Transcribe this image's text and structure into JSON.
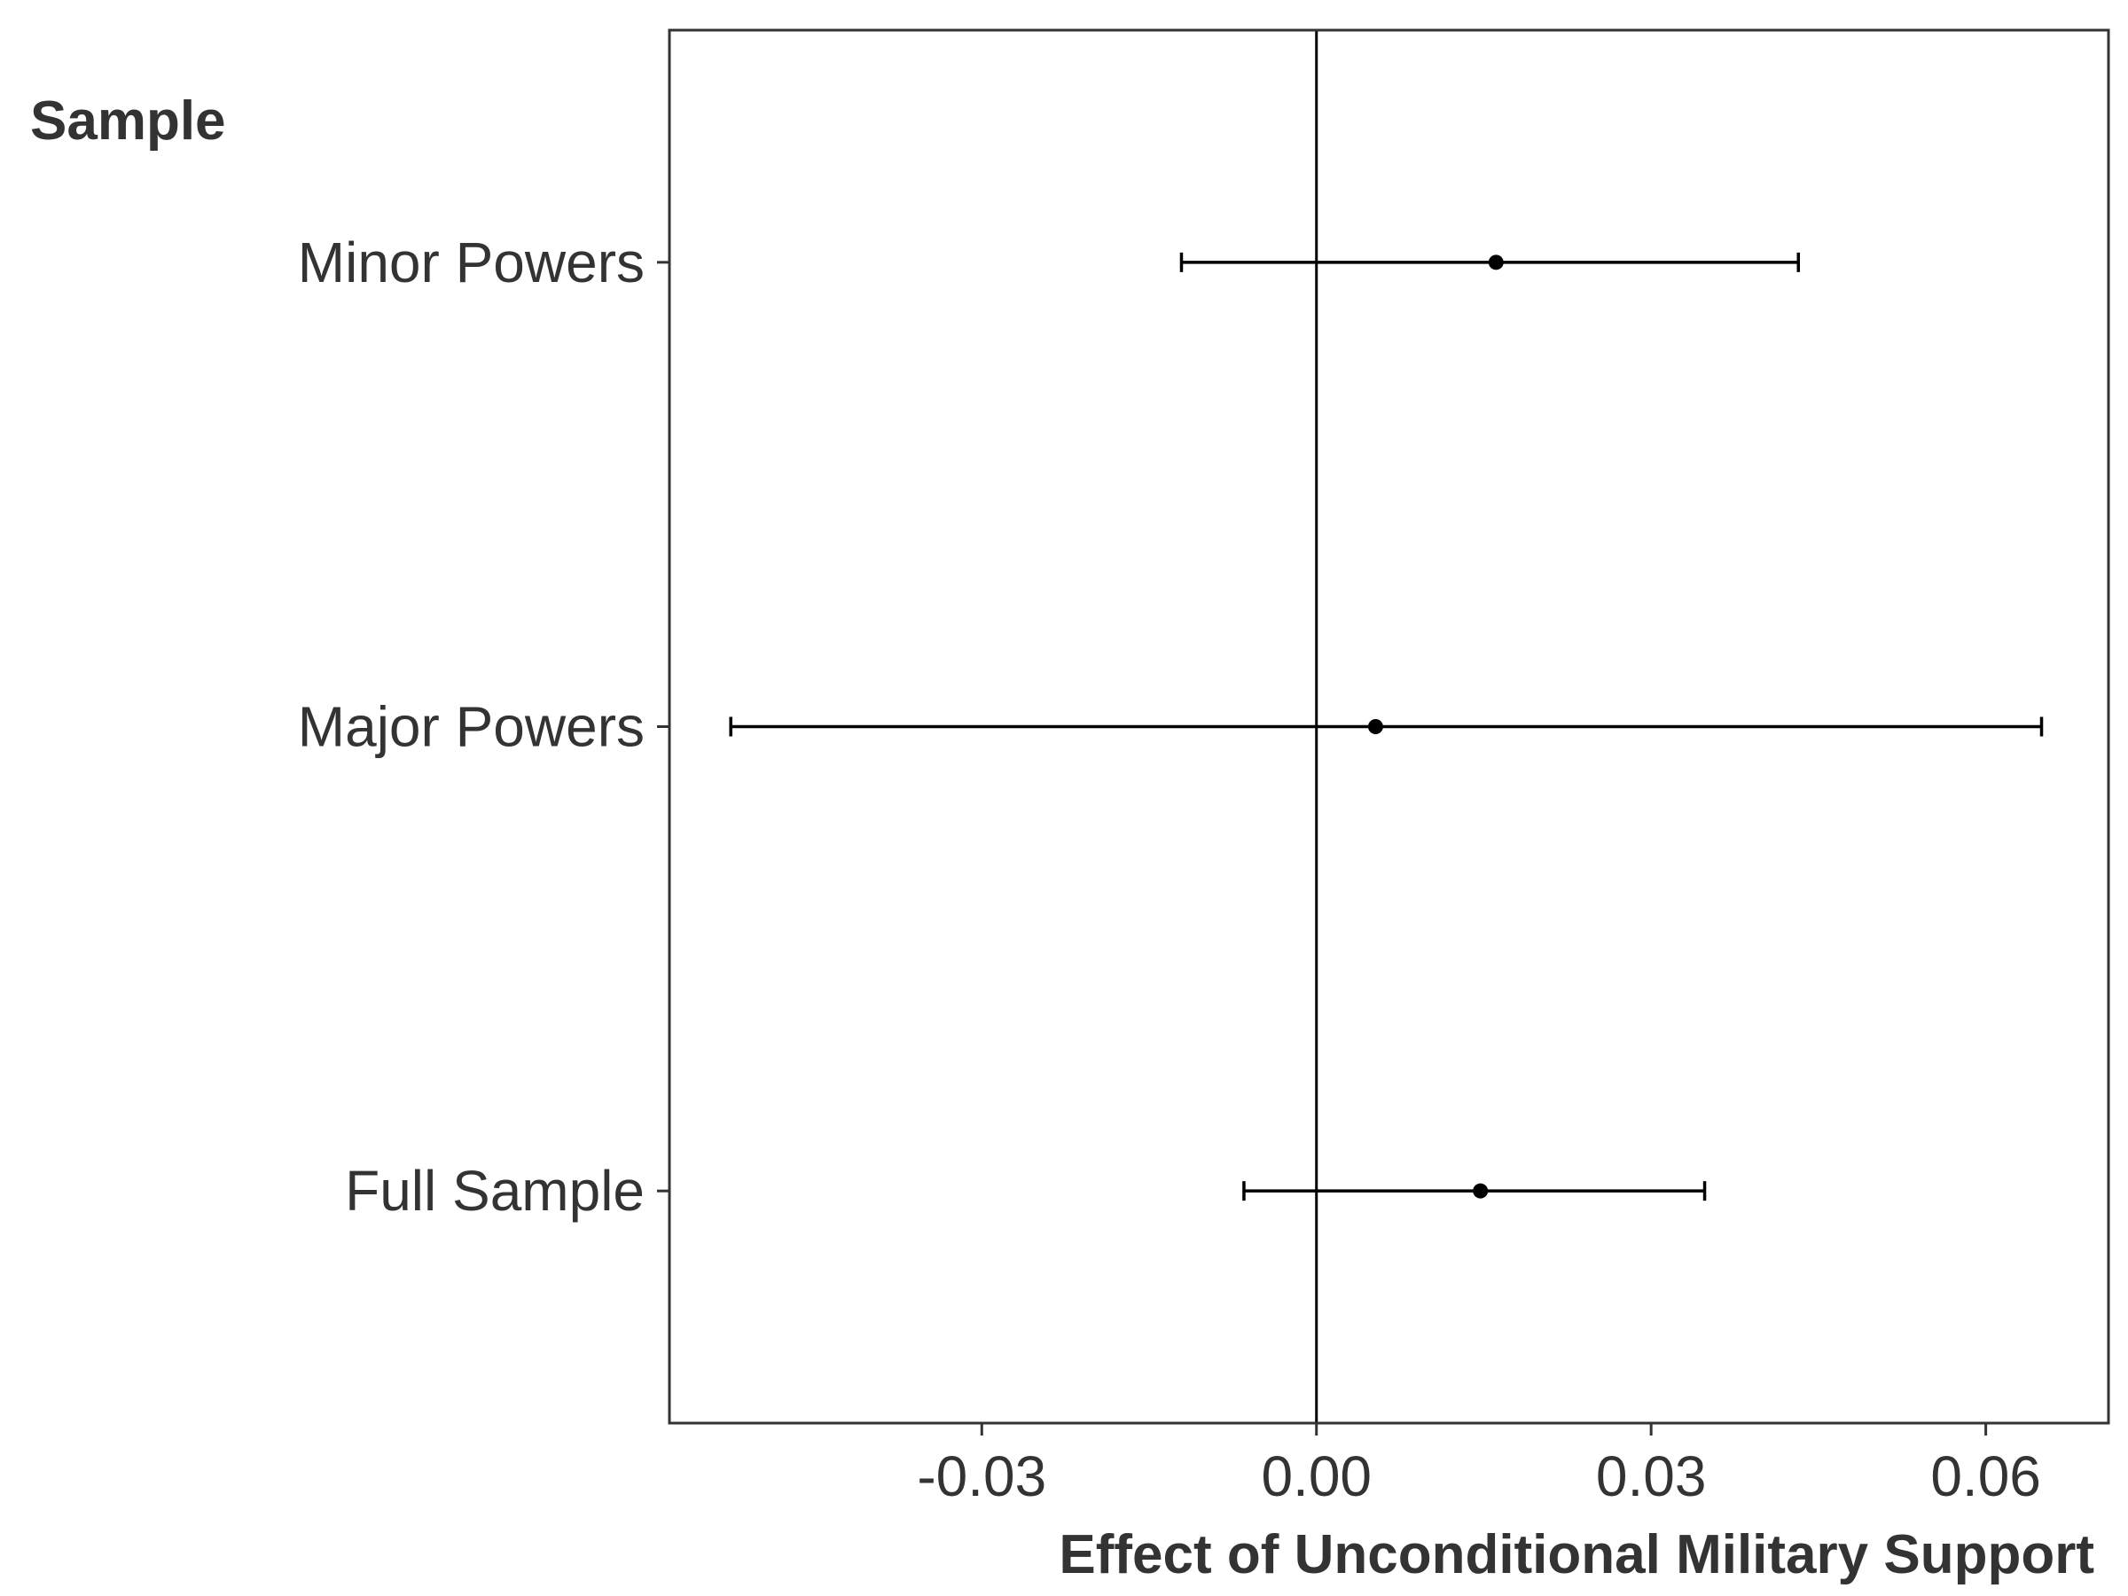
{
  "chart_data": {
    "type": "scatter",
    "subtype": "coefficient-plot-horizontal-errorbars",
    "title": "",
    "xlabel": "Effect of Unconditional Military Support",
    "ylabel": "Sample",
    "xlim": [
      -0.058,
      0.071
    ],
    "x_ticks": [
      -0.03,
      0.0,
      0.03,
      0.06
    ],
    "x_tick_labels": [
      "-0.03",
      "0.00",
      "0.03",
      "0.06"
    ],
    "reference_line_x": 0,
    "grid": false,
    "legend": "none",
    "categories": [
      "Full Sample",
      "Major Powers",
      "Minor Powers"
    ],
    "points": [
      {
        "category": "Full Sample",
        "estimate": 0.0147,
        "lower": -0.0065,
        "upper": 0.0348
      },
      {
        "category": "Major Powers",
        "estimate": 0.0053,
        "lower": -0.0525,
        "upper": 0.065
      },
      {
        "category": "Minor Powers",
        "estimate": 0.0161,
        "lower": -0.0121,
        "upper": 0.0432
      }
    ],
    "colors": {
      "points": "#000000",
      "text": "#333333",
      "border": "#333333"
    }
  }
}
